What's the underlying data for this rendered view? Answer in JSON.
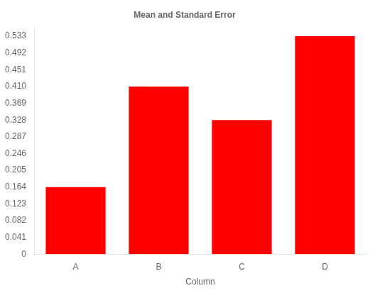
{
  "chart_data": {
    "type": "bar",
    "title": "Mean and Standard Error",
    "xlabel": "Column",
    "categories": [
      "A",
      "B",
      "C",
      "D"
    ],
    "values": [
      0.164,
      0.41,
      0.328,
      0.533
    ],
    "color": "#ff0000",
    "ylim": [
      0,
      0.555
    ],
    "yticks": [
      0,
      0.041,
      0.082,
      0.123,
      0.164,
      0.205,
      0.246,
      0.287,
      0.328,
      0.369,
      {
        "value": 0.41,
        "label": "0.410"
      },
      0.451,
      0.492,
      0.533
    ],
    "grid": false
  }
}
